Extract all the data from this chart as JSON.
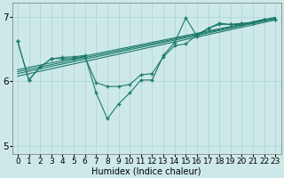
{
  "xlabel": "Humidex (Indice chaleur)",
  "bg_color": "#cde8e8",
  "line_color": "#1a7a6a",
  "xlim": [
    -0.5,
    23.5
  ],
  "ylim": [
    4.88,
    7.22
  ],
  "yticks": [
    5,
    6,
    7
  ],
  "xticks": [
    0,
    1,
    2,
    3,
    4,
    5,
    6,
    7,
    8,
    9,
    10,
    11,
    12,
    13,
    14,
    15,
    16,
    17,
    18,
    19,
    20,
    21,
    22,
    23
  ],
  "straight_lines": [
    {
      "x": [
        0,
        23
      ],
      "y": [
        6.08,
        6.95
      ]
    },
    {
      "x": [
        0,
        23
      ],
      "y": [
        6.12,
        6.97
      ]
    },
    {
      "x": [
        0,
        23
      ],
      "y": [
        6.15,
        6.98
      ]
    },
    {
      "x": [
        0,
        23
      ],
      "y": [
        6.18,
        6.99
      ]
    }
  ],
  "jagged_series": [
    {
      "x": [
        0,
        1,
        2,
        3,
        4,
        5,
        6,
        7,
        8,
        9,
        10,
        11,
        12,
        13,
        14,
        15,
        16,
        17,
        18,
        19,
        20,
        21,
        22,
        23
      ],
      "y": [
        6.62,
        6.02,
        6.22,
        6.35,
        6.35,
        6.35,
        6.38,
        5.98,
        5.92,
        5.92,
        5.95,
        6.1,
        6.12,
        6.38,
        6.55,
        6.58,
        6.72,
        6.82,
        6.88,
        6.88,
        6.88,
        6.92,
        6.96,
        6.96
      ]
    },
    {
      "x": [
        0,
        1,
        2,
        3,
        4,
        5,
        6,
        7,
        8,
        9,
        10,
        11,
        12,
        13,
        14,
        15,
        16,
        17,
        18,
        19,
        20,
        21,
        22,
        23
      ],
      "y": [
        6.62,
        6.02,
        6.22,
        6.35,
        6.37,
        6.38,
        6.4,
        5.82,
        5.42,
        5.65,
        5.82,
        6.02,
        6.02,
        6.4,
        6.6,
        6.98,
        6.7,
        6.82,
        6.9,
        6.88,
        6.9,
        6.9,
        6.96,
        6.96
      ]
    }
  ],
  "grid_color": "#aad4d4",
  "tick_fontsize": 6.5
}
